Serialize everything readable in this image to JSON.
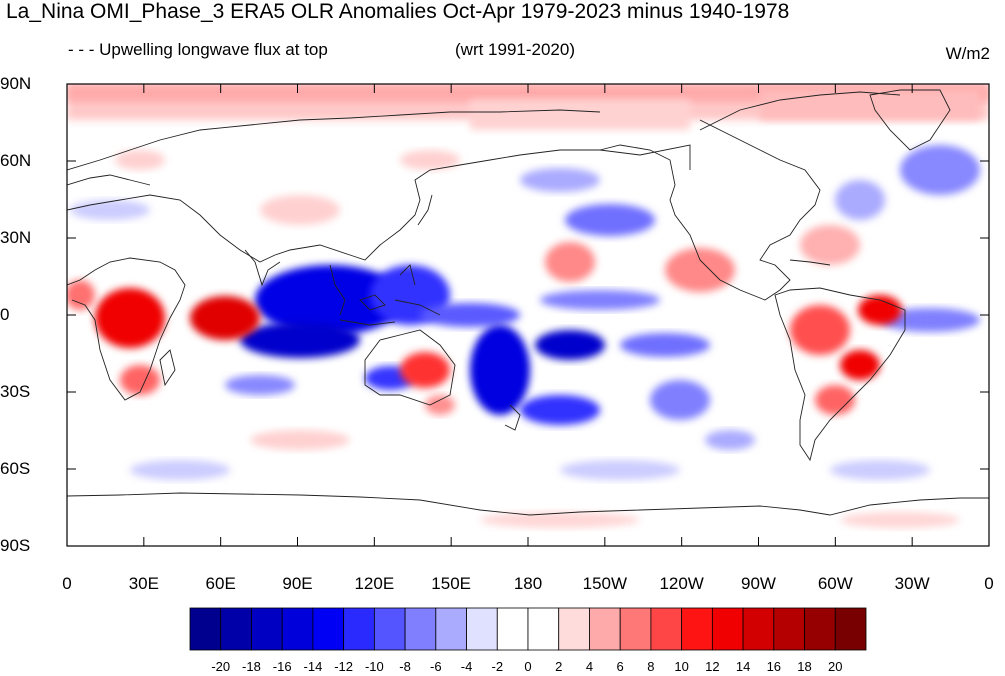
{
  "title": "La_Nina OMI_Phase_3 ERA5 OLR Anomalies Oct-Apr 1979-2023 minus 1940-1978",
  "subtitle_left": "- - - Upwelling longwave flux at top",
  "subtitle_center": "(wrt 1991-2020)",
  "units": "W/m2",
  "lat_labels": [
    "90N",
    "60N",
    "30N",
    "0",
    "30S",
    "60S",
    "90S"
  ],
  "lon_labels": [
    "0",
    "30E",
    "60E",
    "90E",
    "120E",
    "150E",
    "180",
    "150W",
    "120W",
    "90W",
    "60W",
    "30W",
    "0"
  ],
  "colorbar": {
    "labels": [
      "-20",
      "-18",
      "-16",
      "-14",
      "-12",
      "-10",
      "-8",
      "-6",
      "-4",
      "-2",
      "0",
      "2",
      "4",
      "6",
      "8",
      "10",
      "12",
      "14",
      "16",
      "18",
      "20"
    ],
    "colors": [
      "#00008f",
      "#0000a8",
      "#0000c2",
      "#0000db",
      "#0000f5",
      "#2a2aff",
      "#5555ff",
      "#8080ff",
      "#aaaaff",
      "#e0e0ff",
      "#ffffff",
      "#ffffff",
      "#ffdcdc",
      "#ffaaaa",
      "#ff7878",
      "#ff4646",
      "#ff1414",
      "#f00000",
      "#d20000",
      "#b40000",
      "#960000",
      "#780000"
    ]
  }
}
